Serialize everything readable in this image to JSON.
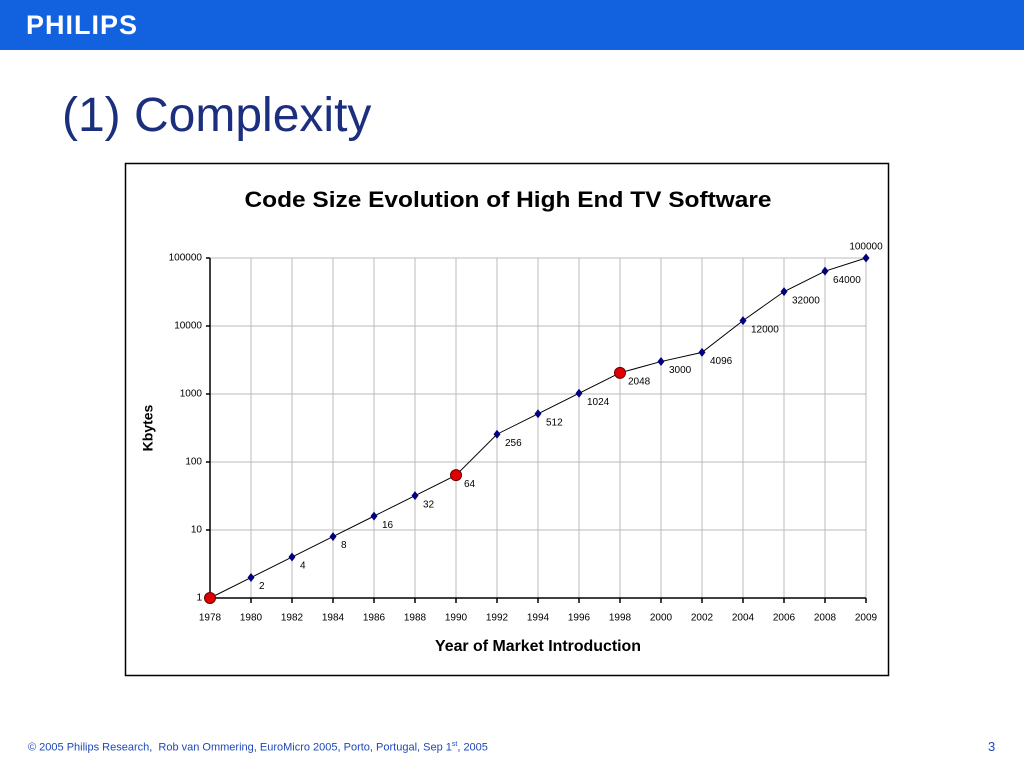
{
  "header": {
    "brand": "PHILIPS"
  },
  "slide": {
    "title": "(1) Complexity"
  },
  "chart_data": {
    "type": "line",
    "title": "Code Size Evolution of High End TV Software",
    "x_label": "Year of Market Introduction",
    "y_label": "Kbytes",
    "categories": [
      "1978",
      "1980",
      "1982",
      "1984",
      "1986",
      "1988",
      "1990",
      "1992",
      "1994",
      "1996",
      "1998",
      "2000",
      "2002",
      "2004",
      "2006",
      "2008",
      "2009"
    ],
    "values": [
      1,
      2,
      4,
      8,
      16,
      32,
      64,
      256,
      512,
      1024,
      2048,
      3000,
      4096,
      12000,
      32000,
      64000,
      100000
    ],
    "color": "#000000",
    "marker_color": "#000080",
    "marker_colors": [
      "#e00000",
      "#000080",
      "#000080",
      "#000080",
      "#000080",
      "#000080",
      "#e00000",
      "#000080",
      "#000080",
      "#000080",
      "#e00000",
      "#000080",
      "#000080",
      "#000080",
      "#000080",
      "#000080",
      "#000080"
    ],
    "log_scale": true,
    "ylim": [
      1,
      100000
    ],
    "yticks": [
      1,
      10,
      100,
      1000,
      10000,
      100000
    ],
    "grid": true
  },
  "footer": {
    "text": "© 2005 Philips Research,  Rob van Ommering, EuroMicro 2005, Porto, Portugal, Sep 1",
    "superscript": "st",
    "text_end": ", 2005"
  },
  "page_number": "3"
}
